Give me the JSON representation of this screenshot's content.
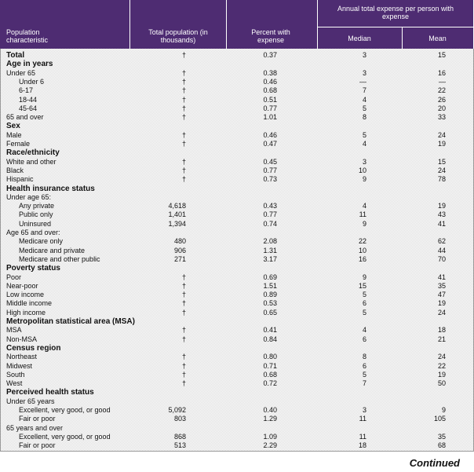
{
  "header": {
    "characteristic": "Population characteristic",
    "total": "Total population (in thousands)",
    "percent": "Percent with expense",
    "annual": "Annual total expense per person with expense",
    "median": "Median",
    "mean": "Mean"
  },
  "total": {
    "cells": [
      "Total",
      "†",
      "0.37",
      "3",
      "15"
    ]
  },
  "sections": [
    {
      "title": "Age in years",
      "rows": [
        {
          "cells": [
            "Under 65",
            "†",
            "0.38",
            "3",
            "16"
          ],
          "rows": [
            {
              "cells": [
                "Under 6",
                "†",
                "0.46",
                "—",
                "—"
              ]
            },
            {
              "cells": [
                "6-17",
                "†",
                "0.68",
                "7",
                "22"
              ]
            },
            {
              "cells": [
                "18-44",
                "†",
                "0.51",
                "4",
                "26"
              ]
            },
            {
              "cells": [
                "45-64",
                "†",
                "0.77",
                "5",
                "20"
              ]
            }
          ]
        },
        {
          "cells": [
            "65 and over",
            "†",
            "1.01",
            "8",
            "33"
          ]
        }
      ]
    },
    {
      "title": "Sex",
      "rows": [
        {
          "cells": [
            "Male",
            "†",
            "0.46",
            "5",
            "24"
          ]
        },
        {
          "cells": [
            "Female",
            "†",
            "0.47",
            "4",
            "19"
          ]
        }
      ]
    },
    {
      "title": "Race/ethnicity",
      "rows": [
        {
          "cells": [
            "White and other",
            "†",
            "0.45",
            "3",
            "15"
          ]
        },
        {
          "cells": [
            "Black",
            "†",
            "0.77",
            "10",
            "24"
          ]
        },
        {
          "cells": [
            "Hispanic",
            "†",
            "0.73",
            "9",
            "78"
          ]
        }
      ]
    },
    {
      "title": "Health insurance status",
      "rows": [
        {
          "cells": [
            "Under age 65:"
          ],
          "rows": [
            {
              "cells": [
                "Any private",
                "4,618",
                "0.43",
                "4",
                "19"
              ]
            },
            {
              "cells": [
                "Public only",
                "1,401",
                "0.77",
                "11",
                "43"
              ]
            },
            {
              "cells": [
                "Uninsured",
                "1,394",
                "0.74",
                "9",
                "41"
              ]
            }
          ]
        },
        {
          "cells": [
            "Age 65 and over:"
          ],
          "rows": [
            {
              "cells": [
                "Medicare only",
                "480",
                "2.08",
                "22",
                "62"
              ]
            },
            {
              "cells": [
                "Medicare and private",
                "906",
                "1.31",
                "10",
                "44"
              ]
            },
            {
              "cells": [
                "Medicare and other public",
                "271",
                "3.17",
                "16",
                "70"
              ]
            }
          ]
        }
      ]
    },
    {
      "title": "Poverty status",
      "rows": [
        {
          "cells": [
            "Poor",
            "†",
            "0.69",
            "9",
            "41"
          ]
        },
        {
          "cells": [
            "Near-poor",
            "†",
            "1.51",
            "15",
            "35"
          ]
        },
        {
          "cells": [
            "Low income",
            "†",
            "0.89",
            "5",
            "47"
          ]
        },
        {
          "cells": [
            "Middle income",
            "†",
            "0.53",
            "6",
            "19"
          ]
        },
        {
          "cells": [
            "High income",
            "†",
            "0.65",
            "5",
            "24"
          ]
        }
      ]
    },
    {
      "title": "Metropolitan statistical area (MSA)",
      "rows": [
        {
          "cells": [
            "MSA",
            "†",
            "0.41",
            "4",
            "18"
          ]
        },
        {
          "cells": [
            "Non-MSA",
            "†",
            "0.84",
            "6",
            "21"
          ]
        }
      ]
    },
    {
      "title": "Census region",
      "rows": [
        {
          "cells": [
            "Northeast",
            "†",
            "0.80",
            "8",
            "24"
          ]
        },
        {
          "cells": [
            "Midwest",
            "†",
            "0.71",
            "6",
            "22"
          ]
        },
        {
          "cells": [
            "South",
            "†",
            "0.68",
            "5",
            "19"
          ]
        },
        {
          "cells": [
            "West",
            "†",
            "0.72",
            "7",
            "50"
          ]
        }
      ]
    },
    {
      "title": "Perceived health status",
      "rows": [
        {
          "cells": [
            "Under 65 years"
          ],
          "rows": [
            {
              "cells": [
                "Excellent, very good, or good",
                "5,092",
                "0.40",
                "3",
                "9"
              ]
            },
            {
              "cells": [
                "Fair or poor",
                "803",
                "1.29",
                "11",
                "105"
              ]
            }
          ]
        },
        {
          "cells": [
            "65 years and over"
          ],
          "rows": [
            {
              "cells": [
                "Excellent, very good, or good",
                "868",
                "1.09",
                "11",
                "35"
              ]
            },
            {
              "cells": [
                "Fair or poor",
                "513",
                "2.29",
                "18",
                "68"
              ]
            }
          ]
        }
      ]
    }
  ],
  "footer": "Continued"
}
